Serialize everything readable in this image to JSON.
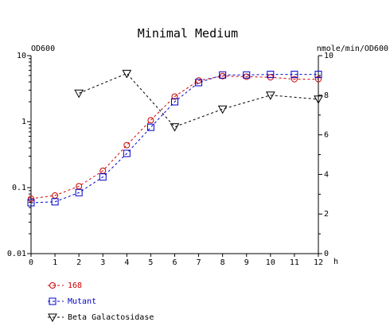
{
  "chart_data": {
    "type": "line",
    "title": "Minimal Medium",
    "xlabel": "h",
    "ylabel_left": "OD600",
    "ylabel_right": "nmole/min/OD600",
    "x_ticks": [
      "0",
      "1",
      "2",
      "3",
      "4",
      "5",
      "6",
      "7",
      "8",
      "9",
      "10",
      "11",
      "12"
    ],
    "y_left_ticks": [
      "0.01",
      "0.1",
      "1",
      "10"
    ],
    "y_right_ticks": [
      "0",
      "2",
      "4",
      "6",
      "8",
      "10"
    ],
    "xlim": [
      0,
      12
    ],
    "ylim_left": [
      0.01,
      10
    ],
    "y_left_scale": "log",
    "ylim_right": [
      0,
      10
    ],
    "grid": false,
    "legend_position": "bottom-left",
    "series": [
      {
        "name": "168",
        "axis": "left",
        "color": "#cc0000",
        "marker": "circle",
        "x": [
          0,
          1,
          2,
          3,
          4,
          5,
          6,
          7,
          8,
          9,
          10,
          11,
          12
        ],
        "y": [
          0.068,
          0.076,
          0.105,
          0.18,
          0.44,
          1.05,
          2.4,
          4.2,
          4.9,
          4.8,
          4.7,
          4.4,
          4.4
        ]
      },
      {
        "name": "Mutant",
        "axis": "left",
        "color": "#0000cc",
        "marker": "square",
        "x": [
          0,
          1,
          2,
          3,
          4,
          5,
          6,
          7,
          8,
          9,
          10,
          11,
          12
        ],
        "y": [
          0.059,
          0.061,
          0.084,
          0.145,
          0.33,
          0.82,
          2.0,
          3.9,
          5.1,
          5.1,
          5.2,
          5.2,
          5.2
        ]
      },
      {
        "name": "Beta Galactosidase",
        "axis": "right",
        "color": "#000000",
        "marker": "triangle-down",
        "x": [
          2,
          4,
          6,
          8,
          10,
          12
        ],
        "y": [
          8.1,
          9.1,
          6.4,
          7.3,
          8.0,
          7.8
        ]
      }
    ]
  }
}
